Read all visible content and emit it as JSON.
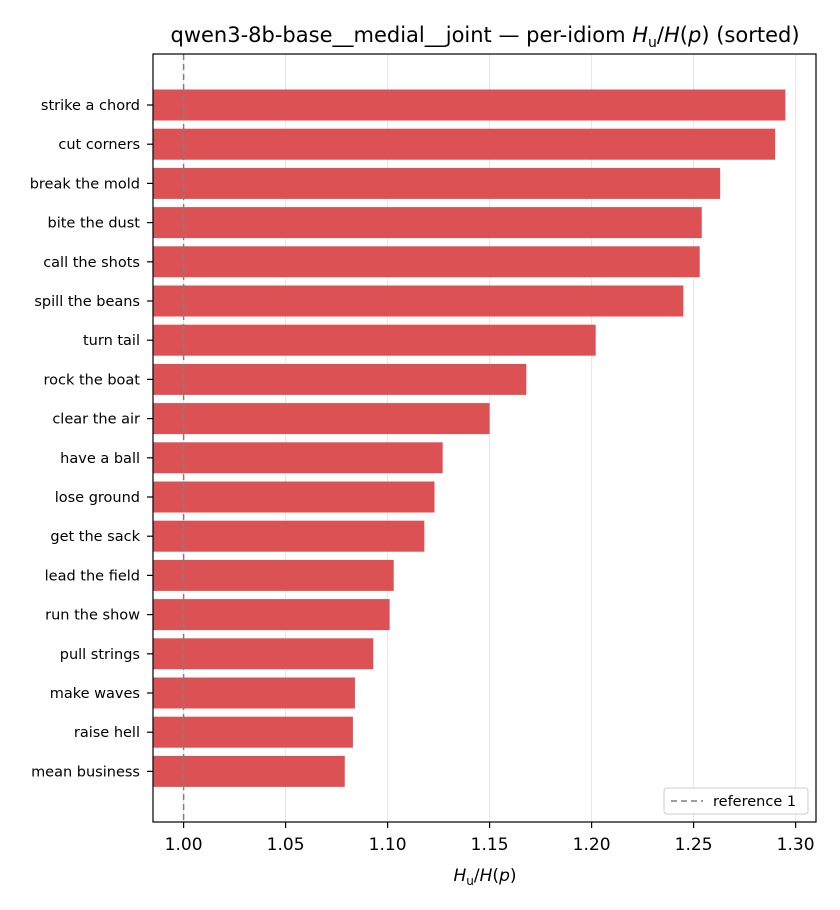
{
  "chart_data": {
    "type": "bar",
    "orientation": "horizontal",
    "title_prefix": "qwen3-8b-base__medial__joint — per-idiom ",
    "title_suffix": " (sorted)",
    "xlabel": "H_u/H(p)",
    "xlim": [
      0.985,
      1.31
    ],
    "xticks": [
      "1.00",
      "1.05",
      "1.10",
      "1.15",
      "1.20",
      "1.25",
      "1.30"
    ],
    "xtick_values": [
      1.0,
      1.05,
      1.1,
      1.15,
      1.2,
      1.25,
      1.3
    ],
    "grid": "vertical",
    "bar_color": "#dc5254",
    "reference_value": 1.0,
    "legend": {
      "label": "reference 1",
      "placement": "lower right"
    },
    "categories": [
      "strike a chord",
      "cut corners",
      "break the mold",
      "bite the dust",
      "call the shots",
      "spill the beans",
      "turn tail",
      "rock the boat",
      "clear the air",
      "have a ball",
      "lose ground",
      "get the sack",
      "lead the field",
      "run the show",
      "pull strings",
      "make waves",
      "raise hell",
      "mean business"
    ],
    "values": [
      1.295,
      1.29,
      1.263,
      1.254,
      1.253,
      1.245,
      1.202,
      1.168,
      1.15,
      1.127,
      1.123,
      1.118,
      1.103,
      1.101,
      1.093,
      1.084,
      1.083,
      1.079
    ]
  }
}
